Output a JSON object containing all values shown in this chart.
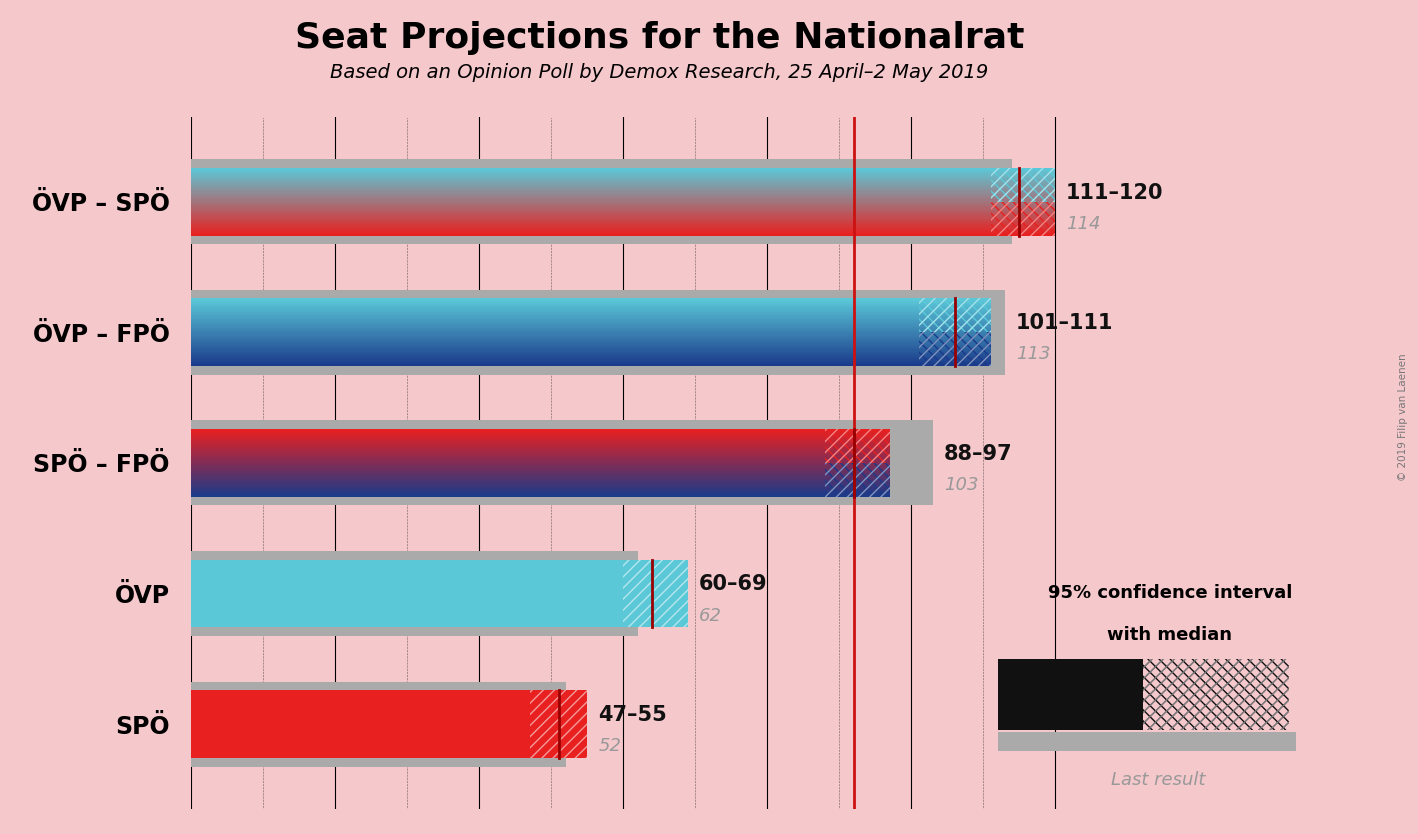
{
  "title": "Seat Projections for the Nationalrat",
  "subtitle": "Based on an Opinion Poll by Demox Research, 25 April–2 May 2019",
  "copyright": "© 2019 Filip van Laenen",
  "background_color": "#f5c8cc",
  "categories": [
    "ÖVP – SPÖ",
    "ÖVP – FPÖ",
    "SPÖ – FPÖ",
    "ÖVP",
    "SPÖ"
  ],
  "ci_low": [
    111,
    101,
    88,
    60,
    47
  ],
  "ci_high": [
    120,
    111,
    97,
    69,
    55
  ],
  "median": [
    115,
    106,
    92,
    64,
    51
  ],
  "last_result": [
    114,
    113,
    103,
    62,
    52
  ],
  "ci_label": [
    "111–120",
    "101–111",
    "88–97",
    "60–69",
    "47–55"
  ],
  "colors_top": [
    "#5bc8d8",
    "#5bc8d8",
    "#e82020",
    "#5bc8d8",
    "#e82020"
  ],
  "colors_bottom": [
    "#e82020",
    "#1a3a8a",
    "#1a3a8a",
    null,
    null
  ],
  "majority_line": 92,
  "x_max": 130,
  "x_min": 0,
  "label_color_ci": "#111111",
  "label_color_last": "#999999",
  "legend_text1": "95% confidence interval",
  "legend_text2": "with median",
  "legend_text3": "Last result"
}
